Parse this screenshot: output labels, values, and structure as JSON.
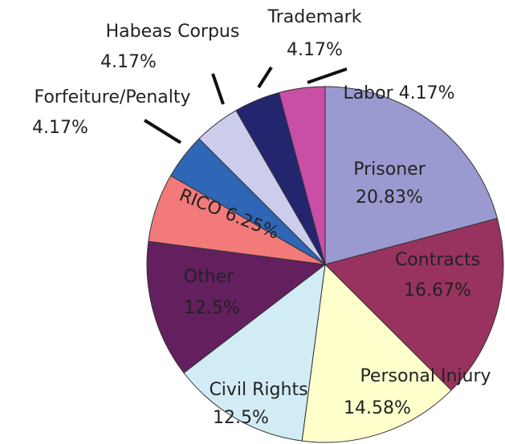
{
  "chart_data": {
    "type": "pie",
    "categories": [
      "Prisoner",
      "Contracts",
      "Personal Injury",
      "Civil Rights",
      "Other",
      "RICO",
      "Forfeiture/Penalty",
      "Habeas Corpus",
      "Trademark",
      "Labor"
    ],
    "values": [
      20.83,
      16.67,
      14.58,
      12.5,
      12.5,
      6.25,
      4.17,
      4.17,
      4.17,
      4.17
    ],
    "value_labels": [
      "20.83%",
      "16.67%",
      "14.58%",
      "12.5%",
      "12.5%",
      "6.25%",
      "4.17%",
      "4.17%",
      "4.17%",
      "4.17%"
    ],
    "colors": [
      "#9a9ad0",
      "#98335f",
      "#ffffcc",
      "#d2ecf5",
      "#641f5f",
      "#f27a7a",
      "#2f66b5",
      "#ccccec",
      "#24256f",
      "#c94ea5"
    ]
  }
}
